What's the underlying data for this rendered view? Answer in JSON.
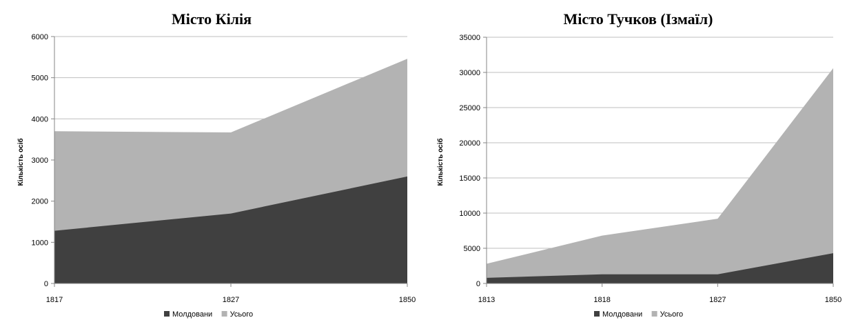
{
  "colors": {
    "moldovans": "#404040",
    "total": "#b3b3b3"
  },
  "chart_data": [
    {
      "type": "area",
      "title": "Місто Кілія",
      "xlabel": "",
      "ylabel": "Кількість осіб",
      "x": [
        "1817",
        "1827",
        "1850"
      ],
      "ylim": [
        0,
        6000
      ],
      "yticks": [
        0,
        1000,
        2000,
        3000,
        4000,
        5000,
        6000
      ],
      "grid": true,
      "legend": "bottom-center",
      "series": [
        {
          "name": "Молдовани",
          "values": [
            1280,
            1700,
            2600
          ]
        },
        {
          "name": "Усього",
          "values": [
            3700,
            3670,
            5460
          ]
        }
      ]
    },
    {
      "type": "area",
      "title": "Місто Тучков (Ізмаїл)",
      "xlabel": "",
      "ylabel": "Кількість осіб",
      "x": [
        "1813",
        "1818",
        "1827",
        "1850"
      ],
      "ylim": [
        0,
        35000
      ],
      "yticks": [
        0,
        5000,
        10000,
        15000,
        20000,
        25000,
        30000,
        35000
      ],
      "grid": true,
      "legend": "bottom-center",
      "series": [
        {
          "name": "Молдовани",
          "values": [
            800,
            1300,
            1300,
            4300
          ]
        },
        {
          "name": "Усього",
          "values": [
            2800,
            6800,
            9200,
            30600
          ]
        }
      ]
    }
  ]
}
